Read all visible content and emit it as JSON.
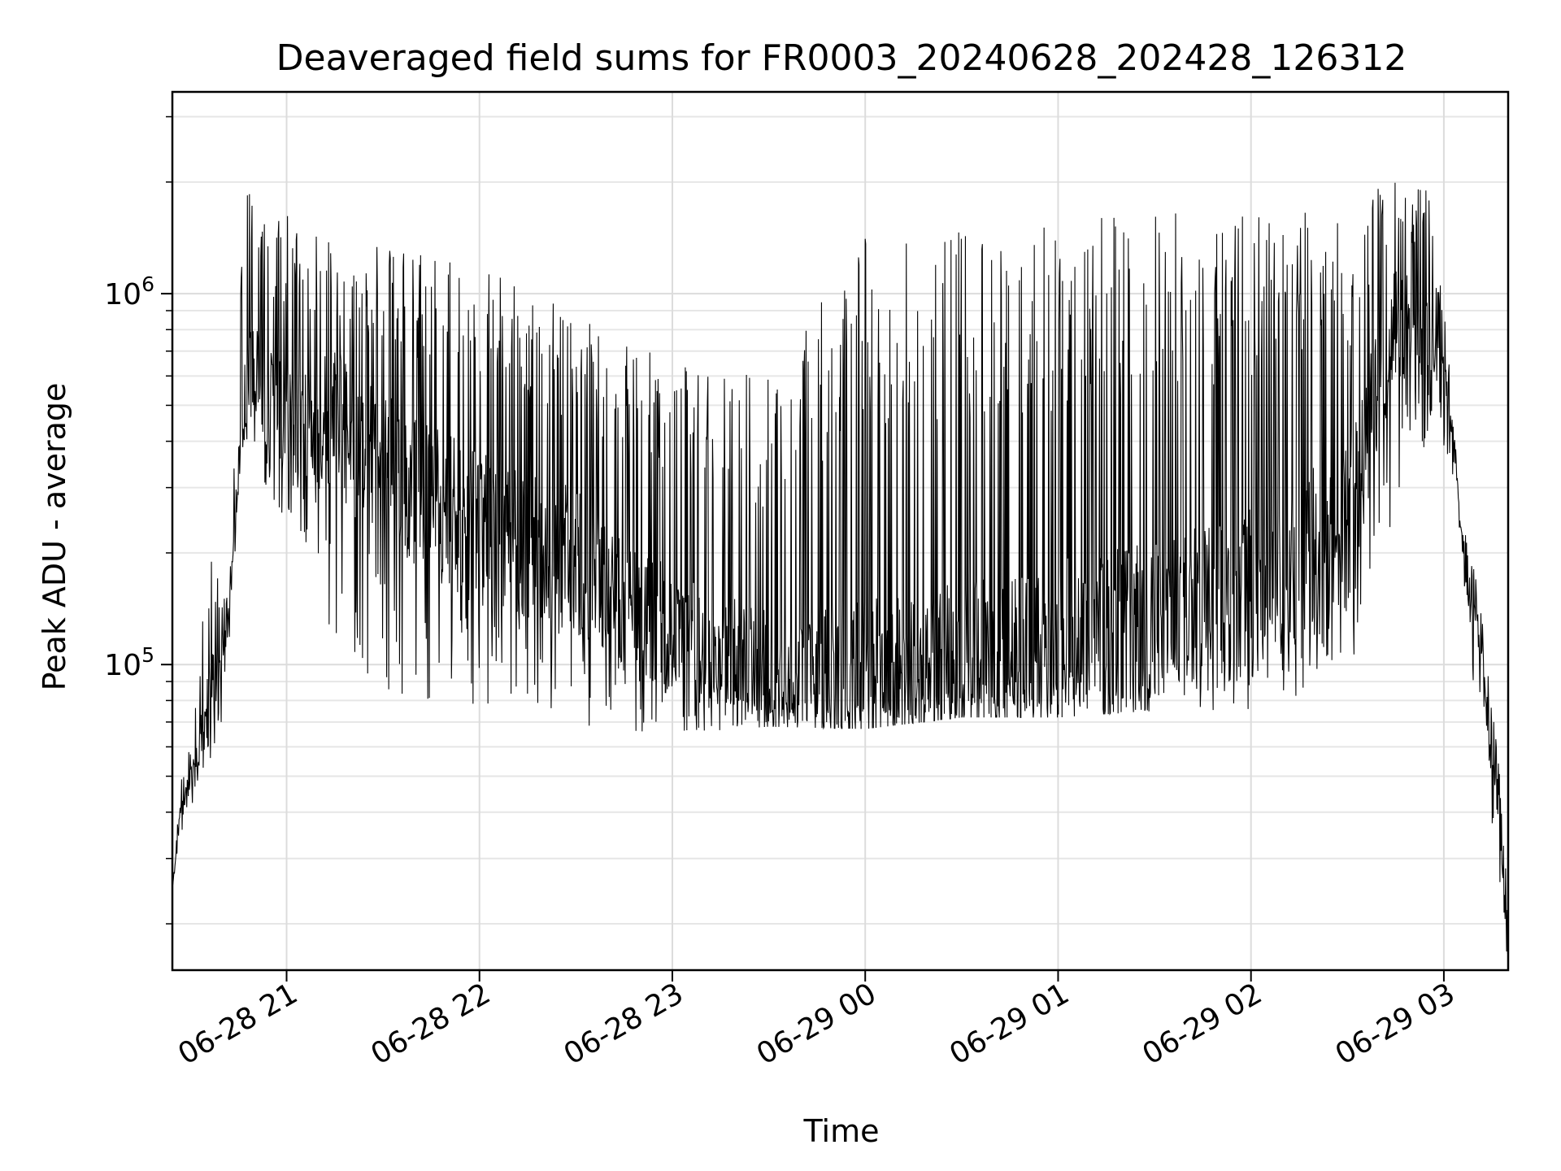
{
  "chart_data": {
    "type": "line",
    "title": "Deaveraged field sums for FR0003_20240628_202428_126312",
    "xlabel": "Time",
    "ylabel": "Peak ADU - average",
    "x_type": "datetime",
    "x_range": [
      "2024-06-28T20:24:28",
      "2024-06-29T03:20:00"
    ],
    "x_ticks": [
      {
        "time": "2024-06-28T21:00:00",
        "label": "06-28 21"
      },
      {
        "time": "2024-06-28T22:00:00",
        "label": "06-28 22"
      },
      {
        "time": "2024-06-28T23:00:00",
        "label": "06-28 23"
      },
      {
        "time": "2024-06-29T00:00:00",
        "label": "06-29 00"
      },
      {
        "time": "2024-06-29T01:00:00",
        "label": "06-29 01"
      },
      {
        "time": "2024-06-29T02:00:00",
        "label": "06-29 02"
      },
      {
        "time": "2024-06-29T03:00:00",
        "label": "06-29 03"
      }
    ],
    "y_scale": "log",
    "ylim": [
      15000,
      3500000
    ],
    "y_ticks": [
      {
        "value": 100000,
        "base": "10",
        "exponent": "5"
      },
      {
        "value": 1000000,
        "base": "10",
        "exponent": "6"
      }
    ],
    "grid": true,
    "line_color": "#000000",
    "series": [
      {
        "x": [
          "2024-06-28T20:24:28",
          "2024-06-28T20:27:00",
          "2024-06-28T20:31:00",
          "2024-06-28T20:35:00",
          "2024-06-28T20:38:00",
          "2024-06-28T20:41:00",
          "2024-06-28T20:44:00",
          "2024-06-28T20:46:00",
          "2024-06-28T20:49:00",
          "2024-06-28T20:52:00",
          "2024-06-28T20:55:00",
          "2024-06-28T20:58:00",
          "2024-06-28T21:03:00",
          "2024-06-28T21:08:00",
          "2024-06-28T21:15:00",
          "2024-06-28T21:25:00",
          "2024-06-28T21:40:00",
          "2024-06-28T22:00:00",
          "2024-06-28T22:30:00",
          "2024-06-28T23:00:00",
          "2024-06-28T23:30:00",
          "2024-06-29T00:00:00",
          "2024-06-29T00:30:00",
          "2024-06-29T01:00:00",
          "2024-06-29T01:30:00",
          "2024-06-29T02:00:00",
          "2024-06-29T02:30:00",
          "2024-06-29T02:45:00",
          "2024-06-29T02:55:00",
          "2024-06-29T03:00:00",
          "2024-06-29T03:03:00",
          "2024-06-29T03:07:00",
          "2024-06-29T03:10:00",
          "2024-06-29T03:14:00",
          "2024-06-29T03:17:00",
          "2024-06-29T03:20:00"
        ],
        "baseline": [
          25000,
          40000,
          52000,
          70000,
          95000,
          110000,
          240000,
          480000,
          620000,
          560000,
          520000,
          470000,
          420000,
          430000,
          470000,
          360000,
          300000,
          230000,
          190000,
          120000,
          95000,
          88000,
          98000,
          112000,
          125000,
          155000,
          240000,
          850000,
          760000,
          600000,
          400000,
          170000,
          130000,
          70000,
          40000,
          17000
        ],
        "peak": [
          25000,
          48000,
          65000,
          230000,
          190000,
          150000,
          440000,
          1400000,
          2300000,
          2000000,
          1500000,
          1800000,
          1500000,
          1450000,
          1400000,
          1350000,
          1300000,
          1200000,
          900000,
          650000,
          600000,
          1500000,
          1500000,
          1600000,
          1650000,
          1700000,
          1650000,
          2100000,
          1900000,
          1000000,
          450000,
          220000,
          180000,
          100000,
          58000,
          22000
        ],
        "trough": [
          25000,
          35000,
          42000,
          50000,
          60000,
          70000,
          200000,
          380000,
          420000,
          330000,
          280000,
          250000,
          200000,
          160000,
          110000,
          90000,
          80000,
          75000,
          68000,
          65000,
          68000,
          67000,
          72000,
          72000,
          75000,
          75000,
          90000,
          250000,
          400000,
          370000,
          300000,
          120000,
          80000,
          45000,
          25000,
          15500
        ]
      }
    ]
  }
}
